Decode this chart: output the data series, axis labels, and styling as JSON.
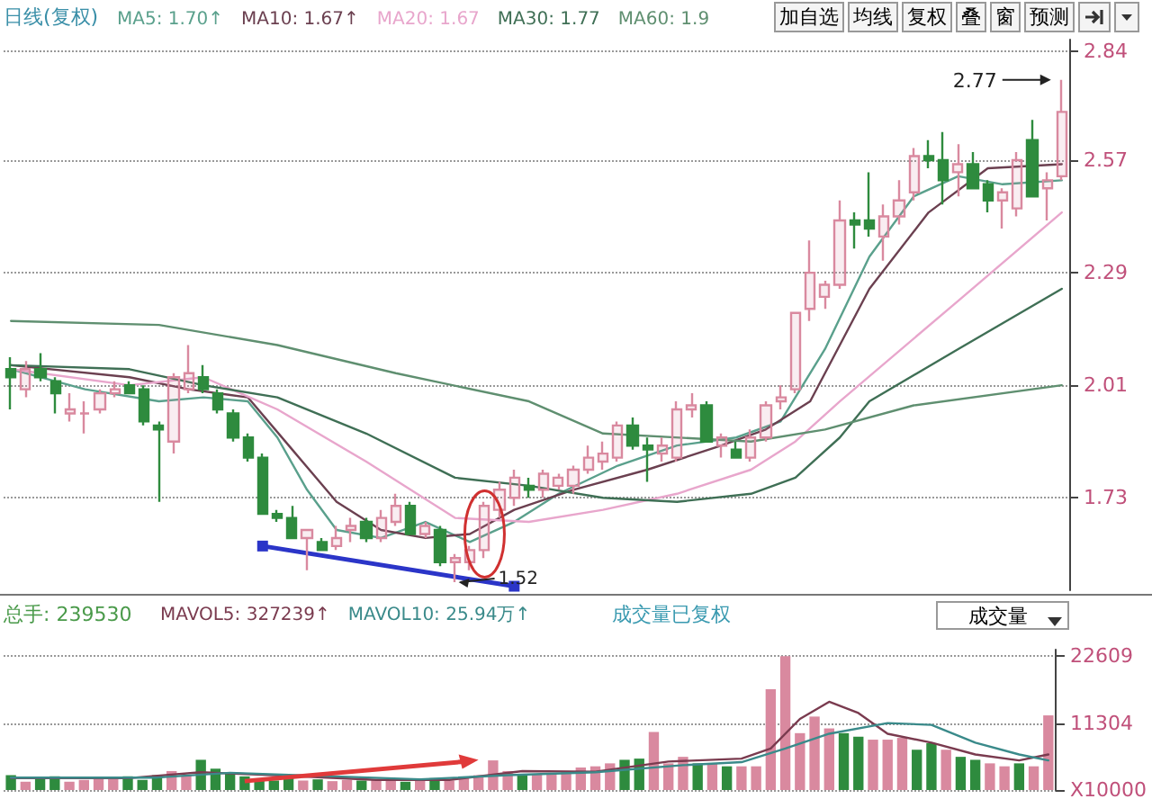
{
  "chart_data": [
    {
      "type": "candlestick",
      "title": "日线(复权)",
      "legend": "top left",
      "grid": "y",
      "tick_labels": "y",
      "categories": [
        null,
        null,
        null,
        null,
        null,
        null,
        null,
        null,
        null,
        null,
        null,
        null,
        null,
        null,
        null,
        null,
        null,
        null,
        null,
        null,
        null,
        null,
        null,
        null,
        null,
        null,
        null,
        null,
        null,
        null,
        null,
        null,
        null,
        null,
        null,
        null,
        null,
        null,
        null,
        null,
        null,
        null,
        null,
        null,
        null,
        null,
        null,
        null,
        null,
        null,
        null,
        null,
        null,
        null,
        null,
        null,
        null,
        null,
        null,
        null,
        null,
        null,
        null,
        null,
        null,
        null,
        null,
        null,
        null,
        null,
        null,
        null
      ],
      "ohlc": [
        [
          2.05,
          2.08,
          1.95,
          2.03
        ],
        [
          2.0,
          2.07,
          1.98,
          2.05
        ],
        [
          2.05,
          2.09,
          2.02,
          2.03
        ],
        [
          2.02,
          2.03,
          1.94,
          1.99
        ],
        [
          1.94,
          1.99,
          1.92,
          1.95
        ],
        [
          1.94,
          1.97,
          1.89,
          1.94
        ],
        [
          1.95,
          2.0,
          1.94,
          1.99
        ],
        [
          1.99,
          2.02,
          1.98,
          2.0
        ],
        [
          2.01,
          2.02,
          1.99,
          1.99
        ],
        [
          2.0,
          2.01,
          1.91,
          1.92
        ],
        [
          1.91,
          1.92,
          1.72,
          1.9
        ],
        [
          1.87,
          2.04,
          1.84,
          2.03
        ],
        [
          2.0,
          2.11,
          1.99,
          2.04
        ],
        [
          2.03,
          2.06,
          1.99,
          2.0
        ],
        [
          1.99,
          2.0,
          1.94,
          1.95
        ],
        [
          1.94,
          1.95,
          1.87,
          1.88
        ],
        [
          1.88,
          1.89,
          1.82,
          1.83
        ],
        [
          1.83,
          1.84,
          1.69,
          1.69
        ],
        [
          1.69,
          1.7,
          1.67,
          1.68
        ],
        [
          1.68,
          1.71,
          1.63,
          1.63
        ],
        [
          1.63,
          1.65,
          1.55,
          1.65
        ],
        [
          1.62,
          1.63,
          1.6,
          1.6
        ],
        [
          1.61,
          1.66,
          1.6,
          1.63
        ],
        [
          1.65,
          1.68,
          1.62,
          1.66
        ],
        [
          1.67,
          1.68,
          1.62,
          1.63
        ],
        [
          1.63,
          1.7,
          1.62,
          1.68
        ],
        [
          1.67,
          1.74,
          1.66,
          1.71
        ],
        [
          1.71,
          1.72,
          1.64,
          1.64
        ],
        [
          1.64,
          1.67,
          1.63,
          1.66
        ],
        [
          1.65,
          1.66,
          1.56,
          1.57
        ],
        [
          1.57,
          1.59,
          1.52,
          1.58
        ],
        [
          1.57,
          1.61,
          1.55,
          1.6
        ],
        [
          1.6,
          1.72,
          1.58,
          1.71
        ],
        [
          1.7,
          1.77,
          1.68,
          1.75
        ],
        [
          1.73,
          1.8,
          1.71,
          1.78
        ],
        [
          1.76,
          1.78,
          1.73,
          1.75
        ],
        [
          1.75,
          1.8,
          1.73,
          1.79
        ],
        [
          1.76,
          1.79,
          1.75,
          1.78
        ],
        [
          1.76,
          1.81,
          1.74,
          1.8
        ],
        [
          1.8,
          1.86,
          1.79,
          1.83
        ],
        [
          1.82,
          1.87,
          1.8,
          1.84
        ],
        [
          1.83,
          1.92,
          1.82,
          1.91
        ],
        [
          1.91,
          1.93,
          1.85,
          1.86
        ],
        [
          1.86,
          1.88,
          1.77,
          1.85
        ],
        [
          1.84,
          1.88,
          1.82,
          1.86
        ],
        [
          1.83,
          1.97,
          1.82,
          1.95
        ],
        [
          1.95,
          1.99,
          1.93,
          1.96
        ],
        [
          1.96,
          1.97,
          1.87,
          1.87
        ],
        [
          1.86,
          1.89,
          1.83,
          1.88
        ],
        [
          1.85,
          1.87,
          1.83,
          1.83
        ],
        [
          1.83,
          1.9,
          1.82,
          1.88
        ],
        [
          1.88,
          1.97,
          1.87,
          1.96
        ],
        [
          1.97,
          2.01,
          1.95,
          1.98
        ],
        [
          2.0,
          2.19,
          1.99,
          2.19
        ],
        [
          2.2,
          2.37,
          2.17,
          2.29
        ],
        [
          2.23,
          2.27,
          2.2,
          2.26
        ],
        [
          2.26,
          2.47,
          2.25,
          2.42
        ],
        [
          2.42,
          2.44,
          2.35,
          2.41
        ],
        [
          2.42,
          2.54,
          2.38,
          2.4
        ],
        [
          2.38,
          2.46,
          2.32,
          2.43
        ],
        [
          2.43,
          2.52,
          2.41,
          2.47
        ],
        [
          2.49,
          2.6,
          2.47,
          2.58
        ],
        [
          2.58,
          2.62,
          2.55,
          2.57
        ],
        [
          2.57,
          2.64,
          2.46,
          2.52
        ],
        [
          2.54,
          2.61,
          2.48,
          2.56
        ],
        [
          2.56,
          2.59,
          2.5,
          2.5
        ],
        [
          2.51,
          2.52,
          2.44,
          2.47
        ],
        [
          2.47,
          2.5,
          2.4,
          2.49
        ],
        [
          2.45,
          2.59,
          2.43,
          2.57
        ],
        [
          2.62,
          2.67,
          2.48,
          2.48
        ],
        [
          2.5,
          2.54,
          2.42,
          2.52
        ],
        [
          2.53,
          2.77,
          2.52,
          2.69
        ]
      ],
      "colors": [
        "#2e8b3e",
        "#d9899f",
        "#2e8b3e",
        "#2e8b3e",
        "#d9899f",
        "#d9899f",
        "#d9899f",
        "#d9899f",
        "#2e8b3e",
        "#2e8b3e",
        "#2e8b3e",
        "#d9899f",
        "#d9899f",
        "#2e8b3e",
        "#2e8b3e",
        "#2e8b3e",
        "#2e8b3e",
        "#2e8b3e",
        "#2e8b3e",
        "#2e8b3e",
        "#d9899f",
        "#2e8b3e",
        "#d9899f",
        "#d9899f",
        "#2e8b3e",
        "#d9899f",
        "#d9899f",
        "#2e8b3e",
        "#d9899f",
        "#2e8b3e",
        "#d9899f",
        "#d9899f",
        "#d9899f",
        "#d9899f",
        "#d9899f",
        "#2e8b3e",
        "#d9899f",
        "#d9899f",
        "#d9899f",
        "#d9899f",
        "#d9899f",
        "#d9899f",
        "#2e8b3e",
        "#2e8b3e",
        "#d9899f",
        "#d9899f",
        "#d9899f",
        "#2e8b3e",
        "#d9899f",
        "#2e8b3e",
        "#d9899f",
        "#d9899f",
        "#d9899f",
        "#d9899f",
        "#d9899f",
        "#d9899f",
        "#d9899f",
        "#2e8b3e",
        "#2e8b3e",
        "#d9899f",
        "#d9899f",
        "#d9899f",
        "#2e8b3e",
        "#2e8b3e",
        "#d9899f",
        "#2e8b3e",
        "#2e8b3e",
        "#d9899f",
        "#d9899f",
        "#2e8b3e",
        "#d9899f",
        "#d9899f"
      ],
      "series": [
        {
          "type": "line",
          "name": "MA5: 1.70↑",
          "color": "#5aa08c",
          "marker": "none",
          "values": [
            2.05,
            null,
            null,
            null,
            null,
            2.0,
            null,
            null,
            null,
            null,
            1.97,
            null,
            null,
            1.98,
            null,
            null,
            1.97,
            null,
            1.88,
            null,
            1.75,
            null,
            1.65,
            null,
            null,
            1.63,
            null,
            null,
            1.67,
            null,
            null,
            1.62,
            null,
            null,
            1.67,
            null,
            null,
            1.74,
            null,
            null,
            null,
            1.81,
            null,
            null,
            null,
            1.86,
            null,
            null,
            null,
            1.88,
            null,
            null,
            1.92,
            null,
            null,
            2.1,
            null,
            null,
            2.33,
            null,
            null,
            2.48,
            null,
            null,
            2.53,
            null,
            null,
            2.51,
            null,
            null,
            null,
            2.52
          ]
        },
        {
          "type": "line",
          "name": "MA10: 1.67↑",
          "color": "#6b4050",
          "marker": "none",
          "values": [
            2.06,
            null,
            null,
            null,
            null,
            null,
            null,
            null,
            2.03,
            null,
            null,
            null,
            2.0,
            null,
            null,
            null,
            1.98,
            null,
            null,
            1.85,
            null,
            null,
            1.72,
            null,
            null,
            1.65,
            null,
            null,
            1.63,
            null,
            null,
            1.64,
            null,
            null,
            1.7,
            null,
            null,
            null,
            1.75,
            null,
            null,
            null,
            null,
            1.8,
            null,
            null,
            null,
            null,
            1.86,
            null,
            null,
            1.9,
            null,
            null,
            1.97,
            null,
            null,
            null,
            2.25,
            null,
            null,
            null,
            2.44,
            null,
            null,
            null,
            2.55,
            null,
            null,
            null,
            null,
            2.56
          ]
        },
        {
          "type": "line",
          "name": "MA20: 1.67",
          "color": "#e8a6cc",
          "marker": "none",
          "values": [
            2.05,
            null,
            null,
            null,
            null,
            null,
            null,
            null,
            2.01,
            null,
            null,
            null,
            null,
            2.03,
            null,
            null,
            null,
            null,
            1.95,
            null,
            null,
            null,
            null,
            null,
            1.82,
            null,
            null,
            null,
            null,
            null,
            1.68,
            null,
            null,
            null,
            null,
            1.67,
            null,
            null,
            null,
            null,
            1.7,
            null,
            null,
            null,
            null,
            1.74,
            null,
            null,
            null,
            null,
            1.8,
            null,
            null,
            1.87,
            null,
            null,
            1.97,
            null,
            null,
            null,
            null,
            null,
            null,
            null,
            2.22,
            null,
            null,
            null,
            null,
            null,
            null,
            2.44
          ]
        },
        {
          "type": "line",
          "name": "MA30: 1.77",
          "color": "#3f6f55",
          "marker": "none",
          "values": [
            2.06,
            null,
            null,
            null,
            null,
            null,
            null,
            null,
            2.05,
            null,
            null,
            null,
            null,
            2.01,
            null,
            null,
            null,
            null,
            1.98,
            null,
            null,
            null,
            null,
            null,
            1.89,
            null,
            null,
            null,
            null,
            null,
            1.78,
            null,
            null,
            null,
            null,
            1.76,
            null,
            null,
            null,
            null,
            1.73,
            null,
            null,
            null,
            null,
            1.72,
            null,
            null,
            null,
            null,
            1.74,
            null,
            null,
            1.78,
            null,
            null,
            1.88,
            null,
            1.97,
            null,
            null,
            null,
            null,
            null,
            2.1,
            null,
            null,
            null,
            null,
            null,
            null,
            2.25
          ]
        },
        {
          "type": "line",
          "name": "MA60: 1.9",
          "color": "#5f8f70",
          "marker": "none",
          "values": [
            2.17,
            null,
            null,
            null,
            null,
            null,
            null,
            null,
            null,
            null,
            2.16,
            null,
            null,
            null,
            null,
            null,
            null,
            null,
            2.11,
            null,
            null,
            null,
            null,
            null,
            null,
            null,
            2.04,
            null,
            null,
            null,
            null,
            null,
            null,
            null,
            null,
            1.97,
            null,
            null,
            null,
            null,
            1.89,
            null,
            null,
            null,
            null,
            null,
            null,
            null,
            null,
            null,
            1.87,
            null,
            null,
            null,
            null,
            1.9,
            null,
            null,
            null,
            null,
            null,
            1.96,
            null,
            null,
            null,
            null,
            null,
            null,
            null,
            null,
            null,
            2.01
          ]
        },
        {
          "type": "line",
          "color": "#2b35c8",
          "marker": "square",
          "values": [
            null,
            null,
            null,
            null,
            null,
            null,
            null,
            null,
            null,
            null,
            null,
            null,
            null,
            null,
            null,
            null,
            null,
            1.61,
            null,
            null,
            null,
            null,
            null,
            null,
            null,
            null,
            null,
            null,
            null,
            null,
            null,
            null,
            null,
            null,
            1.51,
            null,
            null,
            null,
            null,
            null,
            null,
            null,
            null,
            null,
            null,
            null,
            null,
            null,
            null,
            null,
            null,
            null,
            null,
            null,
            null,
            null,
            null,
            null,
            null,
            null,
            null,
            null,
            null,
            null,
            null,
            null,
            null,
            null,
            null,
            null,
            null,
            null
          ]
        }
      ],
      "ylim": [
        1.5,
        2.87
      ],
      "yticks": [
        1.73,
        2.01,
        2.29,
        2.57,
        2.84
      ],
      "annotations": [
        "加自选",
        "均线",
        "复权",
        "叠",
        "窗",
        "预测",
        "2.77",
        "1.52"
      ]
    },
    {
      "type": "bar",
      "legend": "top left",
      "grid": "y",
      "tick_labels": "y",
      "categories": [
        null,
        null,
        null,
        null,
        null,
        null,
        null,
        null,
        null,
        null,
        null,
        null,
        null,
        null,
        null,
        null,
        null,
        null,
        null,
        null,
        null,
        null,
        null,
        null,
        null,
        null,
        null,
        null,
        null,
        null,
        null,
        null,
        null,
        null,
        null,
        null,
        null,
        null,
        null,
        null,
        null,
        null,
        null,
        null,
        null,
        null,
        null,
        null,
        null,
        null,
        null,
        null,
        null,
        null,
        null,
        null,
        null,
        null,
        null,
        null,
        null,
        null,
        null,
        null,
        null,
        null,
        null,
        null,
        null,
        null,
        null,
        null
      ],
      "series": [
        {
          "type": "bar",
          "values": [
            2500,
            1400,
            2000,
            2300,
            1400,
            1700,
            2000,
            2000,
            2300,
            1700,
            2500,
            3200,
            2500,
            5100,
            3600,
            2800,
            2300,
            1700,
            1600,
            2000,
            1600,
            1800,
            1500,
            1700,
            1600,
            1700,
            1700,
            1400,
            1800,
            2000,
            1600,
            2000,
            2500,
            5000,
            3200,
            2500,
            2700,
            2800,
            3200,
            3800,
            4000,
            4500,
            5100,
            5300,
            9800,
            4500,
            5600,
            4500,
            4500,
            4000,
            4000,
            4000,
            17000,
            22600,
            9600,
            12400,
            10400,
            9600,
            9000,
            8500,
            8500,
            8800,
            6800,
            7900,
            6800,
            5600,
            5100,
            4500,
            4000,
            4500,
            4000,
            12600
          ],
          "colors": [
            "#2e8b3e",
            "#d9899f",
            "#2e8b3e",
            "#2e8b3e",
            "#d9899f",
            "#d9899f",
            "#d9899f",
            "#d9899f",
            "#2e8b3e",
            "#2e8b3e",
            "#2e8b3e",
            "#d9899f",
            "#d9899f",
            "#2e8b3e",
            "#2e8b3e",
            "#2e8b3e",
            "#2e8b3e",
            "#2e8b3e",
            "#2e8b3e",
            "#2e8b3e",
            "#d9899f",
            "#2e8b3e",
            "#d9899f",
            "#d9899f",
            "#2e8b3e",
            "#d9899f",
            "#d9899f",
            "#2e8b3e",
            "#d9899f",
            "#2e8b3e",
            "#d9899f",
            "#d9899f",
            "#d9899f",
            "#d9899f",
            "#d9899f",
            "#2e8b3e",
            "#d9899f",
            "#d9899f",
            "#d9899f",
            "#d9899f",
            "#d9899f",
            "#d9899f",
            "#2e8b3e",
            "#2e8b3e",
            "#d9899f",
            "#d9899f",
            "#d9899f",
            "#2e8b3e",
            "#d9899f",
            "#2e8b3e",
            "#d9899f",
            "#d9899f",
            "#d9899f",
            "#d9899f",
            "#d9899f",
            "#d9899f",
            "#d9899f",
            "#2e8b3e",
            "#2e8b3e",
            "#d9899f",
            "#d9899f",
            "#d9899f",
            "#2e8b3e",
            "#2e8b3e",
            "#d9899f",
            "#2e8b3e",
            "#2e8b3e",
            "#d9899f",
            "#d9899f",
            "#2e8b3e",
            "#d9899f",
            "#d9899f"
          ]
        },
        {
          "type": "line",
          "name": "MAVOL5: 327239↑",
          "color": "#7a3b4f",
          "marker": "none",
          "values": [
            2000,
            null,
            null,
            null,
            null,
            null,
            null,
            null,
            2000,
            null,
            null,
            null,
            null,
            3000,
            null,
            null,
            null,
            null,
            2500,
            null,
            null,
            null,
            null,
            null,
            null,
            1700,
            null,
            null,
            null,
            null,
            1700,
            null,
            null,
            null,
            null,
            3200,
            null,
            null,
            null,
            null,
            3100,
            null,
            null,
            null,
            null,
            4800,
            null,
            null,
            null,
            null,
            5300,
            null,
            7000,
            null,
            12000,
            null,
            14900,
            null,
            13000,
            null,
            9500,
            null,
            null,
            8000,
            null,
            null,
            6000,
            null,
            null,
            5000,
            null,
            6000
          ]
        },
        {
          "type": "line",
          "name": "MAVOL10: 25.94万↑",
          "color": "#3a8a8a",
          "marker": "none",
          "values": [
            2100,
            null,
            null,
            null,
            null,
            null,
            null,
            null,
            null,
            null,
            2100,
            null,
            null,
            null,
            null,
            2900,
            null,
            null,
            null,
            null,
            null,
            null,
            null,
            null,
            null,
            null,
            null,
            null,
            1800,
            null,
            null,
            null,
            null,
            null,
            2500,
            null,
            null,
            null,
            null,
            null,
            3000,
            null,
            null,
            null,
            null,
            null,
            4200,
            null,
            null,
            null,
            4700,
            null,
            null,
            7000,
            null,
            null,
            9500,
            null,
            null,
            null,
            11300,
            null,
            null,
            11000,
            null,
            null,
            8000,
            null,
            null,
            6000,
            null,
            5000
          ]
        }
      ],
      "ylim": [
        0,
        23700
      ],
      "yticks": [
        {
          "value": 0,
          "label": "X10000"
        },
        11304,
        22609
      ],
      "annotations": [
        "总手: 239530",
        "成交量已复权",
        "成交量"
      ]
    }
  ]
}
